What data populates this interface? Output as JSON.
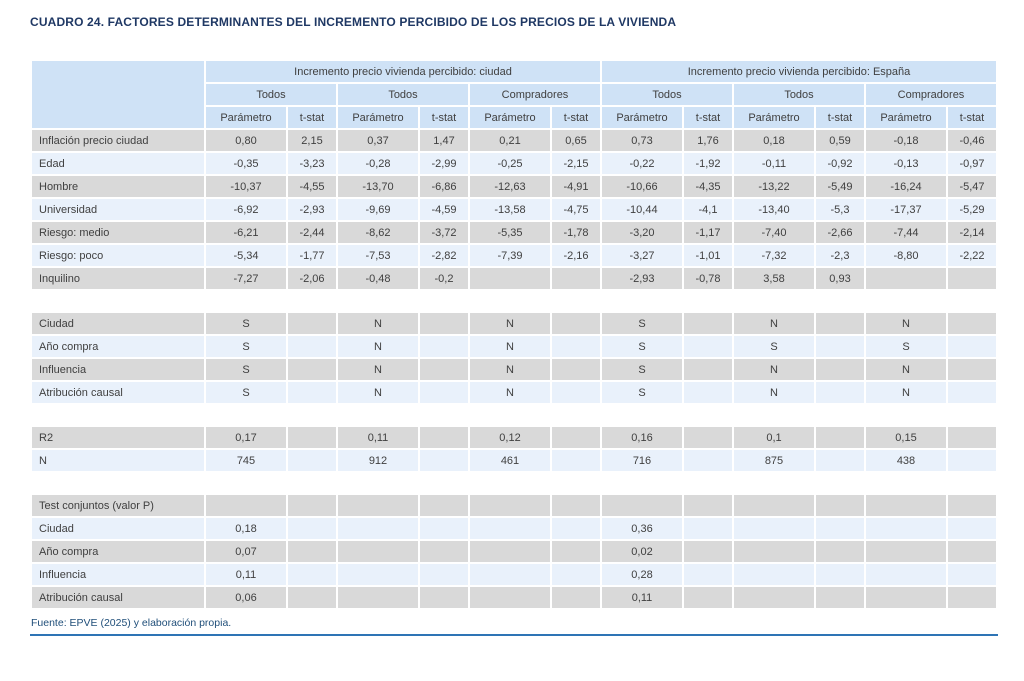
{
  "page": {
    "title": "CUADRO 24. FACTORES DETERMINANTES DEL INCREMENTO PERCIBIDO DE LOS PRECIOS DE LA VIVIENDA",
    "source_note": "Fuente: EPVE (2025) y elaboración propia."
  },
  "colors": {
    "title": "#1f3864",
    "header_fill": "#cfe2f6",
    "row_gray": "#d9d9d9",
    "row_blue": "#e9f1fb",
    "text": "#404040",
    "source_text": "#1f4e79",
    "rule": "#2e74b5"
  },
  "table": {
    "group_headers": [
      {
        "label": "Incremento precio vivienda percibido: ciudad",
        "colspan": 6
      },
      {
        "label": "Incremento precio vivienda percibido: España",
        "colspan": 6
      }
    ],
    "subgroup_headers": [
      "Todos",
      "Todos",
      "Compradores",
      "Todos",
      "Todos",
      "Compradores"
    ],
    "column_headers": [
      "Parámetro",
      "t-stat",
      "Parámetro",
      "t-stat",
      "Parámetro",
      "t-stat",
      "Parámetro",
      "t-stat",
      "Parámetro",
      "t-stat",
      "Parámetro",
      "t-stat"
    ],
    "sections": [
      {
        "name": "coefficients",
        "rows": [
          {
            "label": "Inflación precio ciudad",
            "cells": [
              "0,80",
              "2,15",
              "0,37",
              "1,47",
              "0,21",
              "0,65",
              "0,73",
              "1,76",
              "0,18",
              "0,59",
              "-0,18",
              "-0,46"
            ]
          },
          {
            "label": "Edad",
            "cells": [
              "-0,35",
              "-3,23",
              "-0,28",
              "-2,99",
              "-0,25",
              "-2,15",
              "-0,22",
              "-1,92",
              "-0,11",
              "-0,92",
              "-0,13",
              "-0,97"
            ]
          },
          {
            "label": "Hombre",
            "cells": [
              "-10,37",
              "-4,55",
              "-13,70",
              "-6,86",
              "-12,63",
              "-4,91",
              "-10,66",
              "-4,35",
              "-13,22",
              "-5,49",
              "-16,24",
              "-5,47"
            ]
          },
          {
            "label": "Universidad",
            "cells": [
              "-6,92",
              "-2,93",
              "-9,69",
              "-4,59",
              "-13,58",
              "-4,75",
              "-10,44",
              "-4,1",
              "-13,40",
              "-5,3",
              "-17,37",
              "-5,29"
            ]
          },
          {
            "label": "Riesgo: medio",
            "cells": [
              "-6,21",
              "-2,44",
              "-8,62",
              "-3,72",
              "-5,35",
              "-1,78",
              "-3,20",
              "-1,17",
              "-7,40",
              "-2,66",
              "-7,44",
              "-2,14"
            ]
          },
          {
            "label": "Riesgo: poco",
            "cells": [
              "-5,34",
              "-1,77",
              "-7,53",
              "-2,82",
              "-7,39",
              "-2,16",
              "-3,27",
              "-1,01",
              "-7,32",
              "-2,3",
              "-8,80",
              "-2,22"
            ]
          },
          {
            "label": "Inquilino",
            "cells": [
              "-7,27",
              "-2,06",
              "-0,48",
              "-0,2",
              "",
              "",
              "-2,93",
              "-0,78",
              "3,58",
              "0,93",
              "",
              ""
            ]
          }
        ]
      },
      {
        "name": "controls",
        "rows": [
          {
            "label": "Ciudad",
            "cells": [
              "S",
              "",
              "N",
              "",
              "N",
              "",
              "S",
              "",
              "N",
              "",
              "N",
              ""
            ]
          },
          {
            "label": "Año compra",
            "cells": [
              "S",
              "",
              "N",
              "",
              "N",
              "",
              "S",
              "",
              "S",
              "",
              "S",
              ""
            ]
          },
          {
            "label": "Influencia",
            "cells": [
              "S",
              "",
              "N",
              "",
              "N",
              "",
              "S",
              "",
              "N",
              "",
              "N",
              ""
            ]
          },
          {
            "label": "Atribución causal",
            "cells": [
              "S",
              "",
              "N",
              "",
              "N",
              "",
              "S",
              "",
              "N",
              "",
              "N",
              ""
            ]
          }
        ]
      },
      {
        "name": "fit",
        "rows": [
          {
            "label": "R2",
            "cells": [
              "0,17",
              "",
              "0,11",
              "",
              "0,12",
              "",
              "0,16",
              "",
              "0,1",
              "",
              "0,15",
              ""
            ]
          },
          {
            "label": "N",
            "cells": [
              "745",
              "",
              "912",
              "",
              "461",
              "",
              "716",
              "",
              "875",
              "",
              "438",
              ""
            ]
          }
        ]
      },
      {
        "name": "joint_tests",
        "rows": [
          {
            "label": "Test conjuntos (valor P)",
            "cells": [
              "",
              "",
              "",
              "",
              "",
              "",
              "",
              "",
              "",
              "",
              "",
              ""
            ]
          },
          {
            "label": "Ciudad",
            "cells": [
              "0,18",
              "",
              "",
              "",
              "",
              "",
              "0,36",
              "",
              "",
              "",
              "",
              ""
            ]
          },
          {
            "label": "Año compra",
            "cells": [
              "0,07",
              "",
              "",
              "",
              "",
              "",
              "0,02",
              "",
              "",
              "",
              "",
              ""
            ]
          },
          {
            "label": "Influencia",
            "cells": [
              "0,11",
              "",
              "",
              "",
              "",
              "",
              "0,28",
              "",
              "",
              "",
              "",
              ""
            ]
          },
          {
            "label": "Atribución causal",
            "cells": [
              "0,06",
              "",
              "",
              "",
              "",
              "",
              "0,11",
              "",
              "",
              "",
              "",
              ""
            ]
          }
        ]
      }
    ]
  }
}
